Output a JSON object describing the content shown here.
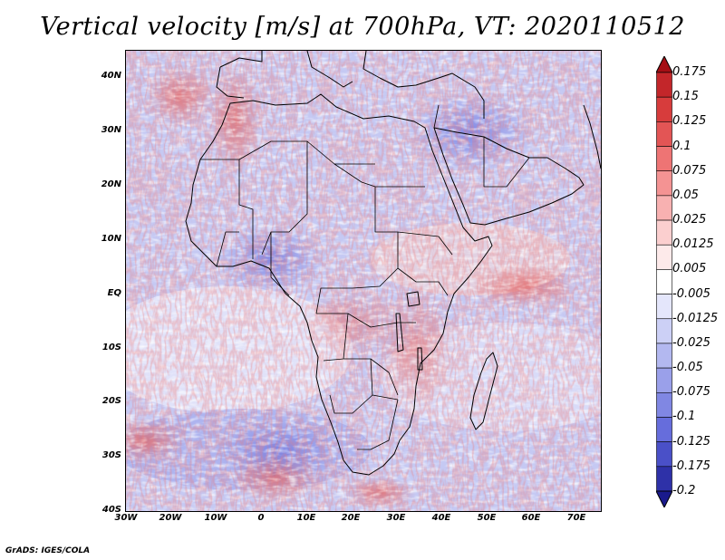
{
  "title": "Vertical velocity [m/s] at 700hPa, VT: 2020110512",
  "footer": "GrADS: IGES/COLA",
  "map": {
    "region": "Africa",
    "y_ticks": [
      "40N",
      "30N",
      "20N",
      "10N",
      "EQ",
      "10S",
      "20S",
      "30S",
      "40S"
    ],
    "x_ticks": [
      "30W",
      "20W",
      "10W",
      "0",
      "10E",
      "20E",
      "30E",
      "40E",
      "50E",
      "60E",
      "70E"
    ]
  },
  "colorbar": {
    "labels": [
      "0.175",
      "0.15",
      "0.125",
      "0.1",
      "0.075",
      "0.05",
      "0.025",
      "0.0125",
      "0.005",
      "-0.005",
      "-0.0125",
      "-0.025",
      "-0.05",
      "-0.075",
      "-0.1",
      "-0.125",
      "-0.175",
      "-0.2"
    ],
    "colors": [
      "#a50f15",
      "#c3262a",
      "#d73c3c",
      "#e35555",
      "#ee7474",
      "#f49393",
      "#f8b1b1",
      "#fbcfcf",
      "#fdeaea",
      "#ffffff",
      "#e4e6fb",
      "#ccd0f6",
      "#b3b8f0",
      "#9aa0ea",
      "#8087e3",
      "#666ddc",
      "#4a50c8",
      "#2e31a8",
      "#1a1a8c"
    ]
  },
  "colors": {
    "positive": "#d73c3c",
    "negative": "#5a5fd6",
    "land_outline": "#000000"
  }
}
